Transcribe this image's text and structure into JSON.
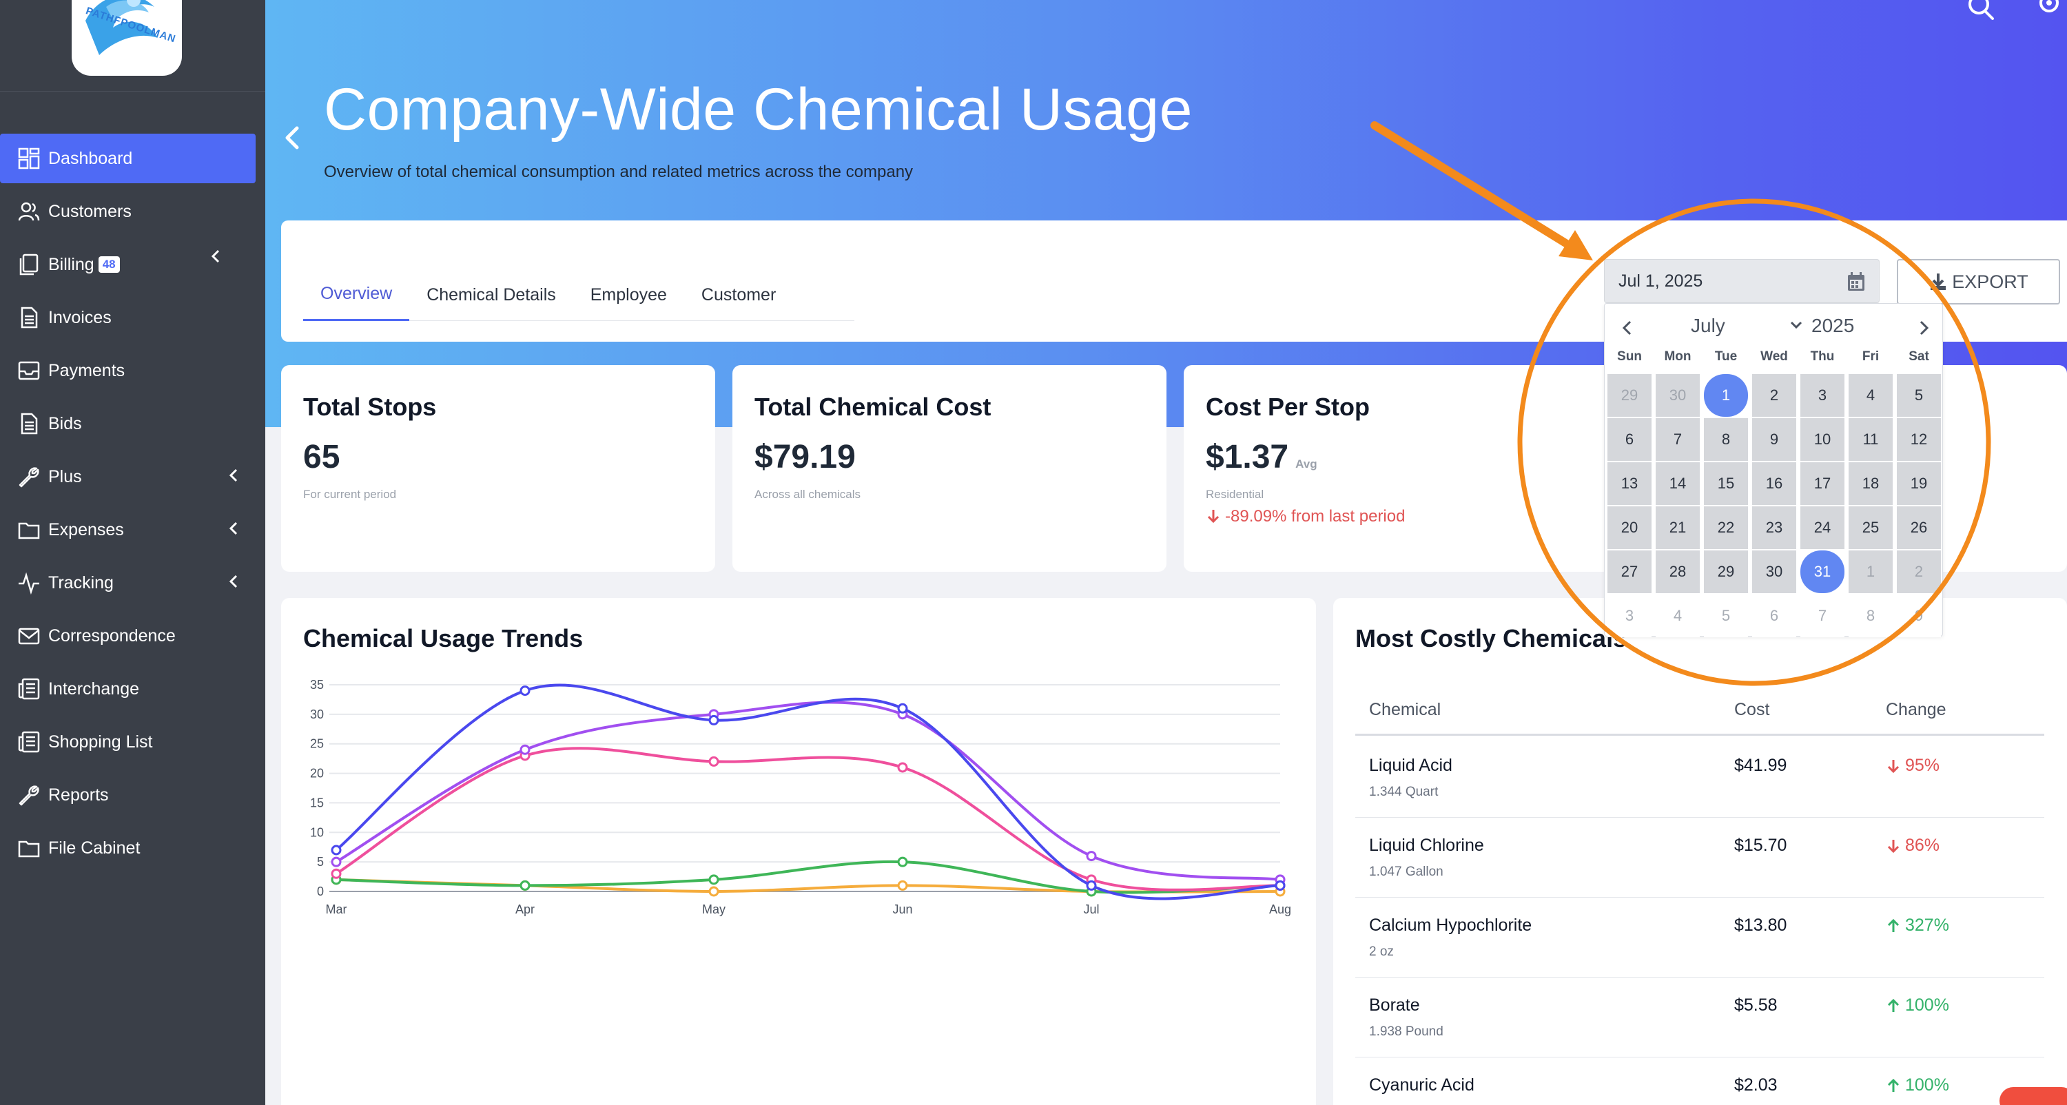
{
  "sidebar": {
    "logo_text": "PATHFPOOLMAN",
    "items": [
      {
        "label": "Dashboard",
        "icon": "grid-icon",
        "active": true
      },
      {
        "label": "Customers",
        "icon": "users-icon"
      },
      {
        "label": "Billing",
        "icon": "files-icon",
        "badge": "48",
        "expandable": true
      },
      {
        "label": "Invoices",
        "icon": "document-icon"
      },
      {
        "label": "Payments",
        "icon": "inbox-icon"
      },
      {
        "label": "Bids",
        "icon": "document-icon"
      },
      {
        "label": "Plus",
        "icon": "wrench-icon",
        "expandable": true
      },
      {
        "label": "Expenses",
        "icon": "folder-icon",
        "expandable": true
      },
      {
        "label": "Tracking",
        "icon": "activity-icon",
        "expandable": true
      },
      {
        "label": "Correspondence",
        "icon": "mail-icon"
      },
      {
        "label": "Interchange",
        "icon": "newspaper-icon"
      },
      {
        "label": "Shopping List",
        "icon": "newspaper-icon"
      },
      {
        "label": "Reports",
        "icon": "wrench-icon"
      },
      {
        "label": "File Cabinet",
        "icon": "folder-icon"
      }
    ]
  },
  "header": {
    "title": "Company-Wide Chemical Usage",
    "subtitle": "Overview of total chemical consumption and related metrics across the company"
  },
  "tabs": [
    {
      "label": "Overview",
      "active": true
    },
    {
      "label": "Chemical Details"
    },
    {
      "label": "Employee"
    },
    {
      "label": "Customer"
    }
  ],
  "date_filter": {
    "value": "Jul 1, 2025"
  },
  "export_label": "EXPORT",
  "stats": [
    {
      "title": "Total Stops",
      "value": "65",
      "sub": "For current period"
    },
    {
      "title": "Total Chemical Cost",
      "value": "$79.19",
      "sub": "Across all chemicals"
    },
    {
      "title": "Cost Per Stop",
      "value": "$1.37",
      "avg": "Avg",
      "sub": "Residential",
      "change": "-89.09% from last period"
    }
  ],
  "chart": {
    "title": "Chemical Usage Trends"
  },
  "chart_data": {
    "type": "line",
    "categories": [
      "Mar",
      "Apr",
      "May",
      "Jun",
      "Jul",
      "Aug"
    ],
    "ylim": [
      0,
      35
    ],
    "yticks": [
      0,
      5,
      10,
      15,
      20,
      25,
      30,
      35
    ],
    "grid": true,
    "series": [
      {
        "color": "#4a48ee",
        "values": [
          7,
          34,
          29,
          31,
          1,
          1
        ]
      },
      {
        "color": "#a14ff0",
        "values": [
          5,
          24,
          30,
          30,
          6,
          2
        ]
      },
      {
        "color": "#ef4f9c",
        "values": [
          3,
          23,
          22,
          21,
          2,
          1
        ]
      },
      {
        "color": "#3fb658",
        "values": [
          2,
          1,
          2,
          5,
          0,
          1
        ]
      },
      {
        "color": "#f5ac3c",
        "values": [
          2,
          1,
          0,
          1,
          0,
          0
        ]
      }
    ]
  },
  "costly": {
    "title": "Most Costly Chemicals",
    "headers": [
      "Chemical",
      "Cost",
      "Change"
    ],
    "rows": [
      {
        "name": "Liquid Acid",
        "qty": "1.344 Quart",
        "cost": "$41.99",
        "change": "95%",
        "dir": "down"
      },
      {
        "name": "Liquid Chlorine",
        "qty": "1.047 Gallon",
        "cost": "$15.70",
        "change": "86%",
        "dir": "down"
      },
      {
        "name": "Calcium Hypochlorite",
        "qty": "2 oz",
        "cost": "$13.80",
        "change": "327%",
        "dir": "up"
      },
      {
        "name": "Borate",
        "qty": "1.938 Pound",
        "cost": "$5.58",
        "change": "100%",
        "dir": "up"
      },
      {
        "name": "Cyanuric Acid",
        "qty": "",
        "cost": "$2.03",
        "change": "100%",
        "dir": "up"
      }
    ]
  },
  "datepicker": {
    "month": "July",
    "year": "2025",
    "weekdays": [
      "Sun",
      "Mon",
      "Tue",
      "Wed",
      "Thu",
      "Fri",
      "Sat"
    ],
    "weeks": [
      [
        "29",
        "30",
        "1",
        "2",
        "3",
        "4",
        "5"
      ],
      [
        "6",
        "7",
        "8",
        "9",
        "10",
        "11",
        "12"
      ],
      [
        "13",
        "14",
        "15",
        "16",
        "17",
        "18",
        "19"
      ],
      [
        "20",
        "21",
        "22",
        "23",
        "24",
        "25",
        "26"
      ],
      [
        "27",
        "28",
        "29",
        "30",
        "31",
        "1",
        "2"
      ],
      [
        "3",
        "4",
        "5",
        "6",
        "7",
        "8",
        "9"
      ]
    ],
    "selected_start": "1",
    "selected_end": "31"
  },
  "colors": {
    "accent": "#4f6af5",
    "sidebar": "#3a3f48",
    "annotation": "#f38a1c",
    "down": "#e05454",
    "up": "#34b26a"
  }
}
